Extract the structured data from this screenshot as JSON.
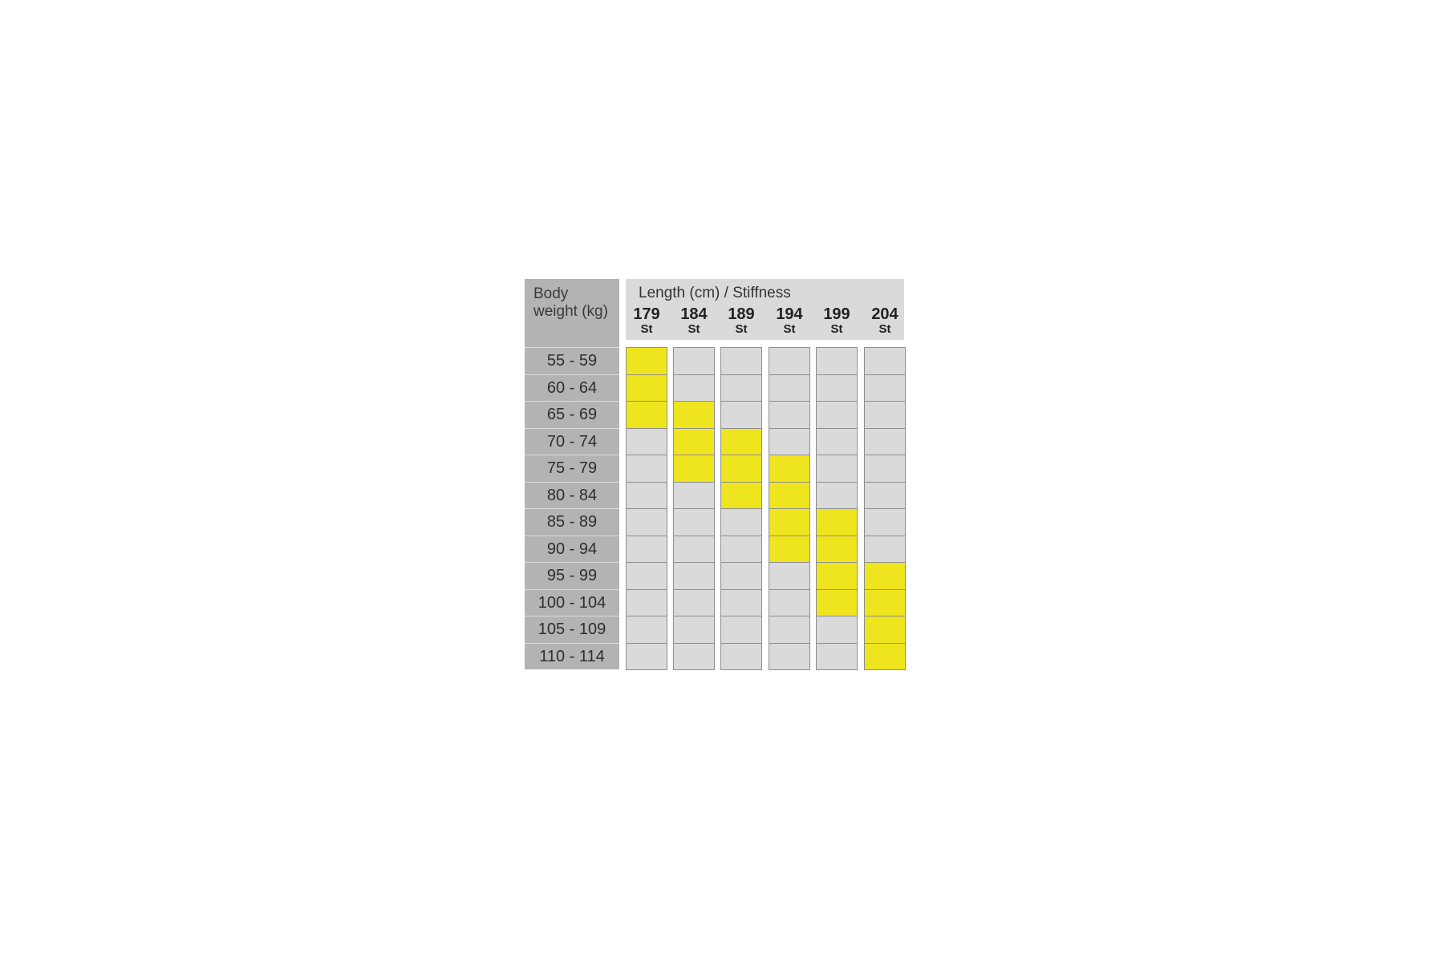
{
  "chart_data": {
    "type": "table",
    "row_header": "Body\nweight (kg)",
    "column_header": "Length (cm) / Stiffness",
    "rows": [
      "55 - 59",
      "60 - 64",
      "65 - 69",
      "70 - 74",
      "75 - 79",
      "80 - 84",
      "85 - 89",
      "90 - 94",
      "95 - 99",
      "100 - 104",
      "105 - 109",
      "110 - 114"
    ],
    "columns": [
      {
        "length": "179",
        "stiffness": "St",
        "recommended_rows": [
          0,
          1,
          2
        ]
      },
      {
        "length": "184",
        "stiffness": "St",
        "recommended_rows": [
          2,
          3,
          4
        ]
      },
      {
        "length": "189",
        "stiffness": "St",
        "recommended_rows": [
          3,
          4,
          5
        ]
      },
      {
        "length": "194",
        "stiffness": "St",
        "recommended_rows": [
          4,
          5,
          6,
          7
        ]
      },
      {
        "length": "199",
        "stiffness": "St",
        "recommended_rows": [
          6,
          7,
          8,
          9
        ]
      },
      {
        "length": "204",
        "stiffness": "St",
        "recommended_rows": [
          8,
          9,
          10,
          11
        ]
      }
    ],
    "colors": {
      "recommended": "#efe51f",
      "empty": "#dadada",
      "row_header_bg": "#b3b3b3"
    }
  }
}
